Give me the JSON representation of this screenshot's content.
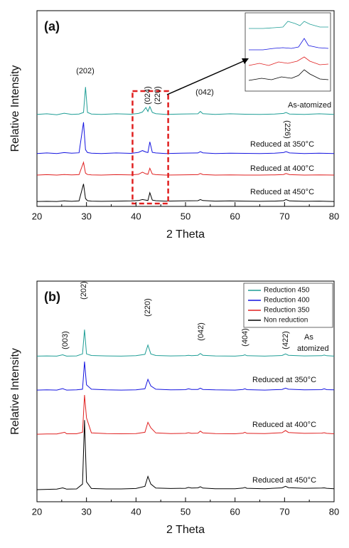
{
  "chart_data": [
    {
      "type": "line",
      "title": "(a)",
      "x_label": "2 Theta",
      "y_label": "Relative Intensity",
      "xlim": [
        20,
        80
      ],
      "xticks": [
        20,
        30,
        40,
        50,
        60,
        70,
        80
      ],
      "ylim": [
        0,
        100
      ],
      "highlight_xrange": [
        39.3,
        46.5
      ],
      "x": [
        20,
        22,
        24,
        25.5,
        27,
        28.5,
        29.4,
        29.8,
        30.2,
        31,
        33,
        36,
        39,
        40.5,
        41.3,
        42,
        42.4,
        42.8,
        43.3,
        44,
        46,
        49,
        52.5,
        53,
        53.5,
        56,
        59,
        62,
        65,
        68,
        69.8,
        70.3,
        71,
        74,
        77,
        80
      ],
      "series": [
        {
          "color": "#1f9e96",
          "values": [
            47,
            47.3,
            46.8,
            47.6,
            47,
            47.2,
            48,
            61,
            48,
            47.2,
            47,
            47.3,
            47.1,
            47.5,
            48.2,
            50.5,
            48.5,
            51,
            48,
            47.4,
            47,
            47.2,
            47.3,
            48.5,
            47.4,
            47,
            47.3,
            47.1,
            47,
            47.2,
            47.5,
            48,
            47.2,
            47,
            47.3,
            47
          ]
        },
        {
          "color": "#1414e0",
          "values": [
            27,
            27.3,
            27,
            27.5,
            27.2,
            27.4,
            43,
            29,
            27.5,
            27.2,
            27,
            27.3,
            27.1,
            27.6,
            28.5,
            27.8,
            27.5,
            33,
            27.6,
            27.3,
            27,
            27.2,
            27.3,
            28,
            27.4,
            27,
            27.2,
            27.1,
            27,
            27.2,
            27.5,
            28,
            27.3,
            27,
            27.2,
            27
          ]
        },
        {
          "color": "#e02020",
          "values": [
            16,
            16.2,
            16,
            16.3,
            16.1,
            16.2,
            22.5,
            17,
            16.3,
            16.1,
            16,
            16.2,
            16.1,
            16.4,
            17.5,
            16.6,
            16.4,
            19.5,
            16.5,
            16.2,
            16,
            16.1,
            16.2,
            16.8,
            16.3,
            16,
            16.1,
            16,
            16,
            16.1,
            16.3,
            16.8,
            16.2,
            16,
            16.1,
            16
          ]
        },
        {
          "color": "#000000",
          "values": [
            2.5,
            2.6,
            2.5,
            2.8,
            2.6,
            2.8,
            11.5,
            4,
            2.9,
            2.7,
            2.6,
            2.7,
            2.8,
            3,
            3.5,
            3.2,
            3,
            7,
            3.2,
            2.9,
            2.7,
            2.8,
            2.9,
            3.5,
            3,
            2.7,
            2.8,
            2.7,
            2.6,
            2.7,
            2.9,
            3.5,
            2.8,
            2.6,
            2.7,
            2.5
          ]
        }
      ],
      "annotations": [
        "(202)",
        "(024)",
        "(220)",
        "(042)",
        "(226)",
        "As-atomized",
        "Reduced at 350°C",
        "Reduced at 400°C",
        "Reduced at 450°C"
      ]
    },
    {
      "type": "line",
      "title": "(b)",
      "x_label": "2 Theta",
      "y_label": "Relative Intensity",
      "xlim": [
        20,
        80
      ],
      "xticks": [
        20,
        30,
        40,
        50,
        60,
        70,
        80
      ],
      "ylim": [
        0,
        100
      ],
      "legend": "upper right",
      "x": [
        20,
        22,
        24,
        25.2,
        25.6,
        26,
        28,
        29.2,
        29.6,
        30,
        31,
        34,
        37,
        40,
        41.8,
        42.4,
        43,
        44,
        47,
        50,
        50.6,
        51.2,
        52.5,
        53,
        53.5,
        56,
        60,
        61.6,
        62,
        62.4,
        66,
        69.5,
        70.2,
        70.8,
        74,
        77.5,
        78,
        78.5,
        80
      ],
      "series": [
        {
          "name": "Reduction 450",
          "color": "#1f9e96",
          "values": [
            66,
            66.1,
            66,
            66.6,
            66.3,
            66,
            66.1,
            67,
            78,
            67,
            66.3,
            66.1,
            66,
            66.2,
            66.8,
            71,
            67,
            66.3,
            66.1,
            66.2,
            66.4,
            66.2,
            66.4,
            67.2,
            66.4,
            66.1,
            66,
            66.3,
            66.6,
            66.2,
            66,
            66.3,
            67,
            66.4,
            66.1,
            66.2,
            66.5,
            66.2,
            66
          ]
        },
        {
          "name": "Reduction 400",
          "color": "#1414e0",
          "values": [
            50.6,
            50.7,
            50.6,
            51.3,
            50.9,
            50.6,
            50.7,
            51,
            63.5,
            53,
            51,
            50.7,
            50.6,
            50.7,
            51.2,
            55.5,
            52.5,
            51,
            50.7,
            50.8,
            51.2,
            50.9,
            50.9,
            51.5,
            50.9,
            50.7,
            50.6,
            50.9,
            51.2,
            50.8,
            50.6,
            50.9,
            51.5,
            51,
            50.7,
            50.8,
            51.2,
            50.8,
            50.7
          ]
        },
        {
          "name": "Reduction 350",
          "color": "#e02020",
          "values": [
            30.6,
            30.7,
            30.7,
            31.3,
            31.5,
            30.8,
            30.8,
            31.5,
            48.4,
            38,
            31.2,
            30.9,
            30.8,
            30.9,
            31.5,
            36,
            33.5,
            31.2,
            30.9,
            31,
            31.3,
            31,
            31.1,
            32,
            31.2,
            30.9,
            30.8,
            31.1,
            31.5,
            31,
            30.9,
            31.3,
            32.3,
            31.4,
            31,
            31.1,
            31.3,
            31,
            30.8
          ]
        },
        {
          "name": "Non reduction",
          "color": "#000000",
          "values": [
            5.5,
            5.6,
            5.7,
            6.3,
            6,
            5.7,
            5.8,
            8,
            37,
            9,
            6,
            5.8,
            5.8,
            6,
            7,
            11.5,
            8,
            6.2,
            6,
            6.1,
            6.5,
            6.2,
            6.3,
            6.8,
            6.2,
            5.9,
            5.9,
            6.2,
            6.5,
            6.1,
            5.9,
            6.3,
            7,
            6.4,
            6.1,
            6.2,
            6.3,
            6.1,
            5.9
          ]
        }
      ],
      "annotations": [
        "(003)",
        "(202)",
        "(220)",
        "(042)",
        "(404)",
        "(422)",
        "As",
        "atomized",
        "Reduced at 350°C",
        "Reduced at 400°C",
        "Reduced at 450°C"
      ]
    }
  ]
}
